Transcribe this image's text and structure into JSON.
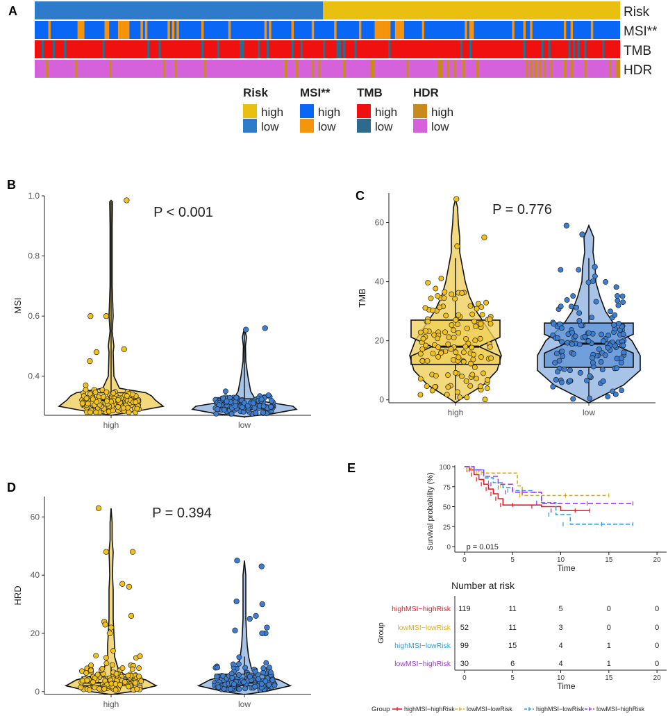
{
  "panel_labels": {
    "a": "A",
    "b": "B",
    "c": "C",
    "d": "D",
    "e": "E"
  },
  "colors": {
    "risk_high": "#E9BF10",
    "risk_low": "#2E7BCB",
    "msi_high": "#0A67F5",
    "msi_low": "#F6950B",
    "tmb_high": "#F01010",
    "tmb_low": "#2C6B8C",
    "hdr_high": "#C98A1C",
    "hdr_low": "#D562DA",
    "violin_high": "#F2D97E",
    "violin_low": "#A7C3E8",
    "box_high": "#F1CF56",
    "box_low": "#5D93D8",
    "pt_high": "#F2C21A",
    "pt_low": "#3C7ED2",
    "km_g1": "#F2161C",
    "km_g2": "#E6AE10",
    "km_g3": "#2B9FE0",
    "km_g4": "#A530E8"
  },
  "heatmap": {
    "rows": [
      {
        "label": "Risk",
        "key": "risk"
      },
      {
        "label": "MSI**",
        "key": "msi"
      },
      {
        "label": "TMB",
        "key": "tmb"
      },
      {
        "label": "HDR",
        "key": "hdr"
      }
    ],
    "legend": [
      {
        "title": "Risk",
        "items": [
          "high",
          "low"
        ],
        "colors": [
          "#E9BF10",
          "#2E7BCB"
        ]
      },
      {
        "title": "MSI**",
        "items": [
          "high",
          "low"
        ],
        "colors": [
          "#0A67F5",
          "#F6950B"
        ]
      },
      {
        "title": "TMB",
        "items": [
          "high",
          "low"
        ],
        "colors": [
          "#F01010",
          "#2C6B8C"
        ]
      },
      {
        "title": "HDR",
        "items": [
          "high",
          "low"
        ],
        "colors": [
          "#C98A1C",
          "#D562DA"
        ]
      }
    ]
  },
  "chart_data": [
    {
      "id": "B",
      "type": "violin",
      "title": "P < 0.001",
      "xlabel": "",
      "ylabel": "MSI",
      "categories": [
        "high",
        "low"
      ],
      "ylim": [
        0.27,
        1.0
      ],
      "yticks": [
        0.4,
        0.6,
        0.8,
        1.0
      ],
      "tick_labels": [
        "0.4",
        "0.6",
        "0.8",
        "1.0"
      ],
      "box": [
        {
          "q1": 0.305,
          "median": 0.32,
          "q3": 0.345
        },
        {
          "q1": 0.29,
          "median": 0.3,
          "q3": 0.325
        }
      ],
      "outliers": [
        [
          0.985,
          0.6,
          0.49,
          0.48,
          0.45,
          0.6
        ],
        [
          0.56,
          0.555
        ]
      ]
    },
    {
      "id": "C",
      "type": "violin",
      "title": "P = 0.776",
      "xlabel": "",
      "ylabel": "TMB",
      "categories": [
        "high",
        "low"
      ],
      "ylim": [
        -1,
        70
      ],
      "yticks": [
        0,
        20,
        40,
        60
      ],
      "tick_labels": [
        "0",
        "20",
        "40",
        "60"
      ],
      "box": [
        {
          "q1": 12,
          "median": 18,
          "q3": 27
        },
        {
          "q1": 11,
          "median": 19,
          "q3": 26
        }
      ],
      "outliers": [
        [
          68,
          55,
          52
        ],
        [
          59,
          56,
          45
        ]
      ]
    },
    {
      "id": "D",
      "type": "violin",
      "title": "P = 0.394",
      "xlabel": "",
      "ylabel": "HRD",
      "categories": [
        "high",
        "low"
      ],
      "ylim": [
        -1,
        67
      ],
      "yticks": [
        0,
        20,
        40,
        60
      ],
      "tick_labels": [
        "0",
        "20",
        "40",
        "60"
      ],
      "box": [
        {
          "q1": 2,
          "median": 3,
          "q3": 5
        },
        {
          "q1": 2,
          "median": 3,
          "q3": 6
        }
      ],
      "outliers": [
        [
          63,
          48,
          48,
          37,
          36,
          26,
          24,
          23,
          22,
          20
        ],
        [
          45,
          43,
          31,
          30,
          26,
          25,
          22,
          21,
          20,
          20
        ]
      ]
    },
    {
      "id": "E",
      "type": "line",
      "title": "",
      "xlabel": "Time",
      "ylabel": "Survival probability (%)",
      "xlim": [
        -1,
        21
      ],
      "ylim": [
        0,
        100
      ],
      "xticks": [
        0,
        5,
        10,
        15,
        20
      ],
      "yticks": [
        0,
        25,
        50,
        75,
        100
      ],
      "pvalue": "p = 0.015",
      "series": [
        {
          "name": "highMSI−highRisk",
          "x": [
            0,
            0.5,
            1,
            1.5,
            2,
            2.5,
            3,
            3.5,
            4,
            6,
            8,
            10,
            13
          ],
          "y": [
            100,
            96,
            90,
            84,
            78,
            72,
            66,
            60,
            52,
            52,
            50,
            45,
            45
          ]
        },
        {
          "name": "lowMSI−lowRisk",
          "x": [
            0,
            0.5,
            1,
            1.5,
            2,
            5.5,
            6,
            15
          ],
          "y": [
            100,
            98,
            96,
            93,
            92,
            76,
            64,
            64
          ]
        },
        {
          "name": "highMSI−lowRisk",
          "x": [
            0,
            1,
            2,
            3,
            4,
            5,
            7,
            8,
            9.5,
            11,
            17.5
          ],
          "y": [
            100,
            96,
            86,
            80,
            74,
            70,
            68,
            55,
            40,
            28,
            28
          ]
        },
        {
          "name": "lowMSI−highRisk",
          "x": [
            0,
            1,
            2,
            3.5,
            5,
            7,
            8,
            17.5
          ],
          "y": [
            100,
            96,
            88,
            78,
            68,
            68,
            54,
            54
          ]
        }
      ]
    },
    {
      "id": "E-risk",
      "type": "table",
      "title": "Number at risk",
      "xlabel": "Time",
      "ylabel": "Group",
      "xticks": [
        0,
        5,
        10,
        15,
        20
      ],
      "rows": [
        {
          "name": "highMSI−highRisk",
          "values": [
            "119",
            "11",
            "5",
            "0",
            "0"
          ]
        },
        {
          "name": "lowMSI−lowRisk",
          "values": [
            "52",
            "11",
            "3",
            "0",
            "0"
          ]
        },
        {
          "name": "highMSI−lowRisk",
          "values": [
            "99",
            "15",
            "4",
            "1",
            "0"
          ]
        },
        {
          "name": "lowMSI−highRisk",
          "values": [
            "30",
            "6",
            "4",
            "1",
            "0"
          ]
        }
      ],
      "legend_title": "Group"
    }
  ]
}
